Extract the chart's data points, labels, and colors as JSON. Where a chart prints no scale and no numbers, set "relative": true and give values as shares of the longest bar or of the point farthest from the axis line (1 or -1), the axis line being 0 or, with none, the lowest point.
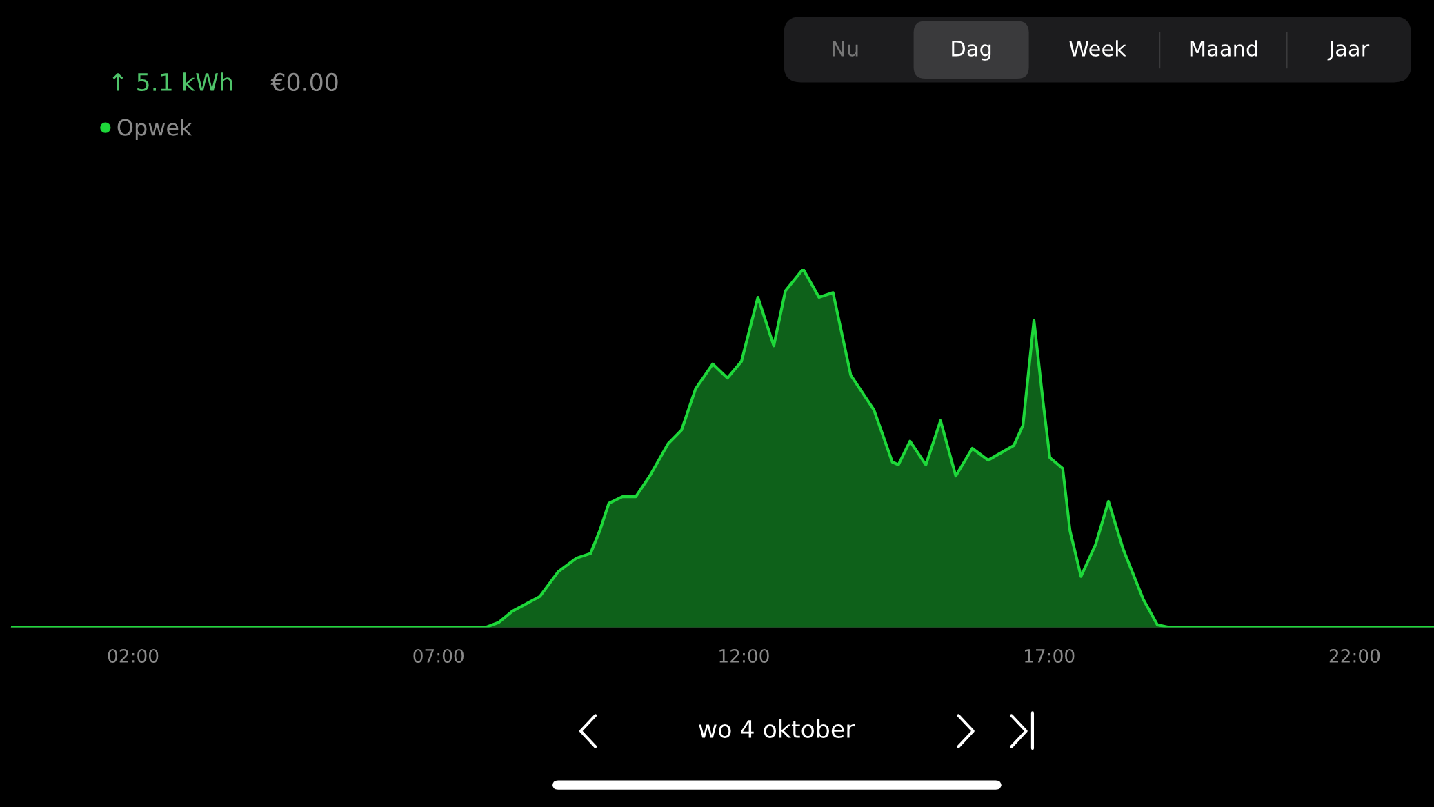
{
  "chart_data": {
    "type": "area",
    "relative": true,
    "legend": "top left",
    "x": [
      0.0,
      7.76,
      7.99,
      8.21,
      8.66,
      8.96,
      9.26,
      9.49,
      9.64,
      9.79,
      10.01,
      10.23,
      10.46,
      10.76,
      10.98,
      11.21,
      11.49,
      11.73,
      11.96,
      12.23,
      12.49,
      12.68,
      12.97,
      13.23,
      13.46,
      13.75,
      14.13,
      14.43,
      14.53,
      14.72,
      14.98,
      15.22,
      15.47,
      15.74,
      16.0,
      16.42,
      16.57,
      16.75,
      16.9,
      17.01,
      17.22,
      17.34,
      17.52,
      17.76,
      17.97,
      18.21,
      18.54,
      18.77,
      18.99,
      23.3
    ],
    "xlim": [
      0.0,
      23.3
    ],
    "xticks": [
      {
        "value": 2,
        "label": "02:00"
      },
      {
        "value": 7,
        "label": "07:00"
      },
      {
        "value": 12,
        "label": "12:00"
      },
      {
        "value": 17,
        "label": "17:00"
      },
      {
        "value": 22,
        "label": "22:00"
      }
    ],
    "series": [
      {
        "name": "Opwek",
        "color": "#1ed83a",
        "values": [
          0,
          0,
          0.015,
          0.046,
          0.087,
          0.156,
          0.194,
          0.207,
          0.27,
          0.347,
          0.365,
          0.365,
          0.423,
          0.513,
          0.551,
          0.666,
          0.735,
          0.696,
          0.742,
          0.921,
          0.786,
          0.939,
          1.0,
          0.921,
          0.934,
          0.704,
          0.607,
          0.462,
          0.454,
          0.52,
          0.454,
          0.577,
          0.423,
          0.5,
          0.467,
          0.508,
          0.564,
          0.857,
          0.628,
          0.474,
          0.444,
          0.27,
          0.143,
          0.232,
          0.352,
          0.219,
          0.079,
          0.008,
          0,
          0
        ]
      }
    ],
    "annotations": [
      "↑ 5.1 kWh",
      "€0.00",
      "Nu",
      "Dag",
      "Week",
      "Maand",
      "Jaar",
      "wo 4 oktober"
    ]
  }
}
